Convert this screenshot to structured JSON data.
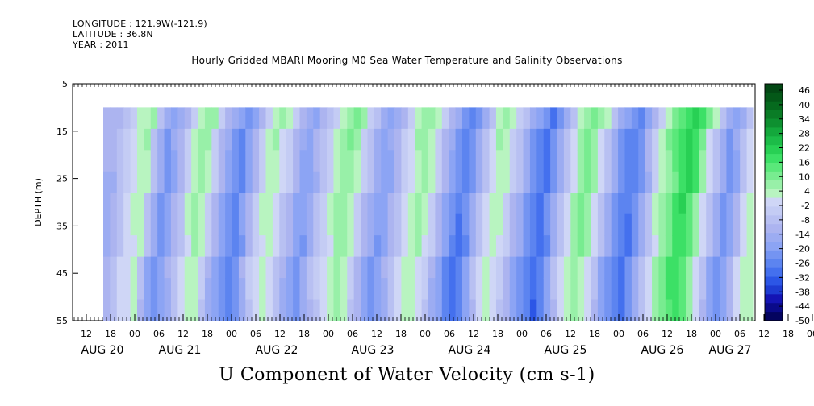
{
  "header": {
    "longitude": "LONGITUDE : 121.9W(-121.9)",
    "latitude": "LATITUDE : 36.8N",
    "year": "YEAR : 2011"
  },
  "chart_data": {
    "type": "heatmap",
    "title": "Hourly Gridded MBARI Mooring M0 Sea Water Temperature and Salinity Observations",
    "xlabel": "U Component of Water Velocity (cm s-1)",
    "ylabel": "DEPTH (m)",
    "ylim": [
      55,
      5
    ],
    "y_ticks": [
      5,
      15,
      25,
      35,
      45,
      55
    ],
    "data_depth_range": [
      10,
      55
    ],
    "x_hour_ticks": [
      "12",
      "18",
      "00",
      "06",
      "12",
      "18",
      "00",
      "06",
      "12",
      "18",
      "00",
      "06",
      "12",
      "18",
      "00",
      "06",
      "12",
      "18",
      "00",
      "06",
      "12",
      "18",
      "00",
      "06",
      "12",
      "18",
      "00",
      "06",
      "12",
      "18",
      "00",
      "06"
    ],
    "x_day_labels": [
      "AUG 20",
      "AUG 21",
      "AUG 22",
      "AUG 23",
      "AUG 24",
      "AUG 25",
      "AUG 26",
      "AUG 27"
    ],
    "colorbar_ticks": [
      "46",
      "40",
      "34",
      "28",
      "22",
      "16",
      "10",
      "4",
      "-2",
      "-8",
      "-14",
      "-20",
      "-26",
      "-32",
      "-38",
      "-44",
      "-50"
    ],
    "colorbar_range": [
      -50,
      50
    ],
    "colorbar_colors": [
      "#04045f",
      "#0a0a8a",
      "#1414b4",
      "#1e3cd2",
      "#2c56e6",
      "#4470ee",
      "#5c84f0",
      "#7494f2",
      "#8ca4f4",
      "#9cacf2",
      "#acb4f0",
      "#b8c0f2",
      "#c4ccf4",
      "#cfd6f6",
      "#b8f4c0",
      "#98f0a8",
      "#78ec90",
      "#5ae87a",
      "#3ce066",
      "#28d054",
      "#1cbc48",
      "#14a83c",
      "#0e9030",
      "#0a7c26",
      "#066a1e",
      "#045818",
      "#034814"
    ],
    "pattern": {
      "description_source": "approximate visible banding by column",
      "column_values": [
        -12,
        -8,
        -4,
        2,
        4,
        6,
        -6,
        -14,
        -20,
        -16,
        -10,
        -4,
        4,
        8,
        6,
        -2,
        -10,
        -16,
        -20,
        -24,
        -18,
        -10,
        -2,
        4,
        6,
        2,
        -4,
        -10,
        -16,
        -18,
        -12,
        -6,
        -2,
        4,
        8,
        10,
        6,
        -2,
        -8,
        -14,
        -18,
        -16,
        -10,
        -4,
        2,
        6,
        8,
        4,
        -2,
        -10,
        -16,
        -22,
        -26,
        -22,
        -14,
        -6,
        2,
        6,
        4,
        -2,
        -8,
        -14,
        -20,
        -24,
        -28,
        -22,
        -14,
        -6,
        2,
        8,
        12,
        8,
        2,
        -6,
        -14,
        -20,
        -24,
        -26,
        -20,
        -12,
        -4,
        4,
        10,
        14,
        20,
        22,
        18,
        10,
        2,
        -6,
        -14,
        -20,
        -16,
        -8,
        2,
        6
      ]
    }
  }
}
